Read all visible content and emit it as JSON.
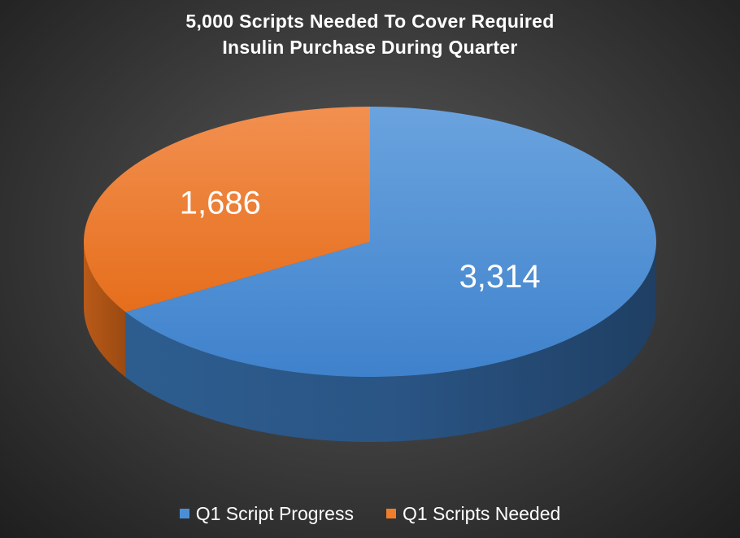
{
  "chart_data": {
    "type": "pie",
    "title_lines": [
      "5,000 Scripts Needed To Cover Required",
      "Insulin Purchase During Quarter"
    ],
    "categories": [
      "Q1 Script Progress",
      "Q1 Scripts Needed"
    ],
    "values": [
      3314,
      1686
    ],
    "data_labels": [
      "3,314",
      "1,686"
    ],
    "colors": [
      "#4a8fd6",
      "#ee7d2c"
    ],
    "legend_position": "bottom",
    "style": "3d"
  }
}
